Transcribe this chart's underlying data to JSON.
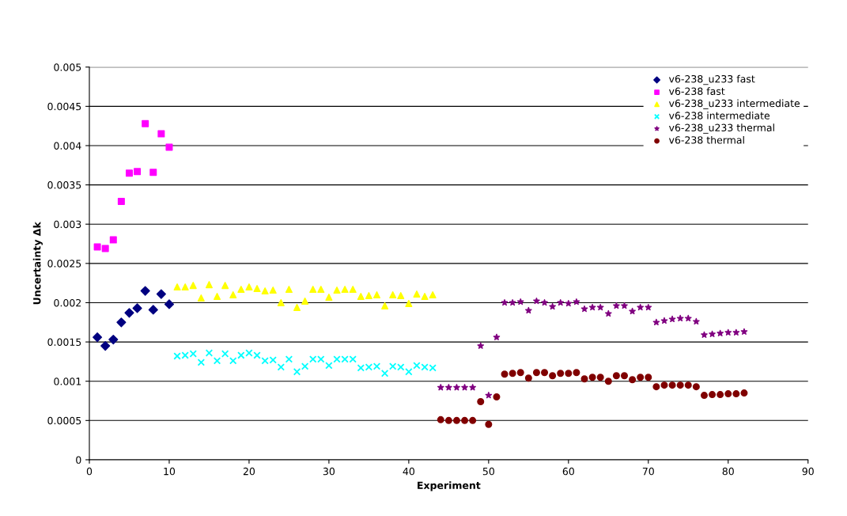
{
  "chart_data": {
    "type": "scatter",
    "xlabel": "Experiment",
    "ylabel": "Uncertainty Δk",
    "xlim": [
      0,
      90
    ],
    "xticks": [
      0,
      10,
      20,
      30,
      40,
      50,
      60,
      70,
      80,
      90
    ],
    "ylim": [
      0,
      0.005
    ],
    "yticks": [
      {
        "value": 0,
        "label": "0"
      },
      {
        "value": 0.0005,
        "label": "0.0005"
      },
      {
        "value": 0.001,
        "label": "0.001"
      },
      {
        "value": 0.0015,
        "label": "0.0015"
      },
      {
        "value": 0.002,
        "label": "0.002"
      },
      {
        "value": 0.0025,
        "label": "0.0025"
      },
      {
        "value": 0.003,
        "label": "0.003"
      },
      {
        "value": 0.0035,
        "label": "0.0035"
      },
      {
        "value": 0.004,
        "label": "0.004"
      },
      {
        "value": 0.0045,
        "label": "0.0045"
      },
      {
        "value": 0.005,
        "label": "0.005"
      }
    ],
    "grid": "y",
    "legend": "top right",
    "series": [
      {
        "name": "v6-238_u233 fast",
        "color": "#000080",
        "marker": "diamond",
        "x": [
          1,
          2,
          3,
          4,
          5,
          6,
          7,
          8,
          9,
          10
        ],
        "values": [
          0.00156,
          0.00145,
          0.00153,
          0.00175,
          0.00187,
          0.00193,
          0.00215,
          0.00191,
          0.00211,
          0.00198
        ]
      },
      {
        "name": "v6-238 fast",
        "color": "#ff00ff",
        "marker": "square",
        "x": [
          1,
          2,
          3,
          4,
          5,
          6,
          7,
          8,
          9,
          10
        ],
        "values": [
          0.00271,
          0.00269,
          0.0028,
          0.00329,
          0.00365,
          0.00367,
          0.00428,
          0.00366,
          0.00415,
          0.00398
        ]
      },
      {
        "name": "v6-238_u233 intermediate",
        "color": "#ffff00",
        "marker": "triangle",
        "x": [
          11,
          12,
          13,
          14,
          15,
          16,
          17,
          18,
          19,
          20,
          21,
          22,
          23,
          24,
          25,
          26,
          27,
          28,
          29,
          30,
          31,
          32,
          33,
          34,
          35,
          36,
          37,
          38,
          39,
          40,
          41,
          42,
          43
        ],
        "values": [
          0.0022,
          0.0022,
          0.00222,
          0.00206,
          0.00223,
          0.00208,
          0.00222,
          0.0021,
          0.00217,
          0.0022,
          0.00218,
          0.00215,
          0.00216,
          0.002,
          0.00217,
          0.00194,
          0.00202,
          0.00217,
          0.00217,
          0.00207,
          0.00216,
          0.00217,
          0.00217,
          0.00208,
          0.00209,
          0.0021,
          0.00196,
          0.0021,
          0.00209,
          0.00199,
          0.00211,
          0.00208,
          0.0021
        ]
      },
      {
        "name": "v6-238 intermediate",
        "color": "#00ffff",
        "marker": "cross",
        "x": [
          11,
          12,
          13,
          14,
          15,
          16,
          17,
          18,
          19,
          20,
          21,
          22,
          23,
          24,
          25,
          26,
          27,
          28,
          29,
          30,
          31,
          32,
          33,
          34,
          35,
          36,
          37,
          38,
          39,
          40,
          41,
          42,
          43
        ],
        "values": [
          0.00132,
          0.00133,
          0.00135,
          0.00124,
          0.00136,
          0.00126,
          0.00135,
          0.00126,
          0.00133,
          0.00136,
          0.00133,
          0.00126,
          0.00127,
          0.00118,
          0.00128,
          0.00112,
          0.00119,
          0.00128,
          0.00128,
          0.0012,
          0.00128,
          0.00128,
          0.00128,
          0.00117,
          0.00118,
          0.00119,
          0.0011,
          0.00119,
          0.00118,
          0.00112,
          0.0012,
          0.00118,
          0.00117
        ]
      },
      {
        "name": "v6-238_u233 thermal",
        "color": "#800080",
        "marker": "star",
        "x": [
          44,
          45,
          46,
          47,
          48,
          49,
          50,
          51,
          52,
          53,
          54,
          55,
          56,
          57,
          58,
          59,
          60,
          61,
          62,
          63,
          64,
          65,
          66,
          67,
          68,
          69,
          70,
          71,
          72,
          73,
          74,
          75,
          76,
          77,
          78,
          79,
          80,
          81,
          82
        ],
        "values": [
          0.00092,
          0.00092,
          0.00092,
          0.00092,
          0.00092,
          0.00145,
          0.00082,
          0.00156,
          0.002,
          0.002,
          0.00201,
          0.0019,
          0.00202,
          0.002,
          0.00195,
          0.002,
          0.00199,
          0.00201,
          0.00192,
          0.00194,
          0.00194,
          0.00186,
          0.00196,
          0.00196,
          0.00189,
          0.00194,
          0.00194,
          0.00175,
          0.00177,
          0.00179,
          0.0018,
          0.0018,
          0.00176,
          0.00159,
          0.0016,
          0.00161,
          0.00162,
          0.00162,
          0.00163
        ]
      },
      {
        "name": "v6-238 thermal",
        "color": "#800000",
        "marker": "circle",
        "x": [
          44,
          45,
          46,
          47,
          48,
          49,
          50,
          51,
          52,
          53,
          54,
          55,
          56,
          57,
          58,
          59,
          60,
          61,
          62,
          63,
          64,
          65,
          66,
          67,
          68,
          69,
          70,
          71,
          72,
          73,
          74,
          75,
          76,
          77,
          78,
          79,
          80,
          81,
          82
        ],
        "values": [
          0.00051,
          0.0005,
          0.0005,
          0.0005,
          0.0005,
          0.00074,
          0.00045,
          0.0008,
          0.00109,
          0.0011,
          0.00111,
          0.00104,
          0.00111,
          0.00111,
          0.00107,
          0.0011,
          0.0011,
          0.00111,
          0.00103,
          0.00105,
          0.00105,
          0.001,
          0.00107,
          0.00107,
          0.00102,
          0.00105,
          0.00105,
          0.00093,
          0.00095,
          0.00095,
          0.00095,
          0.00095,
          0.00093,
          0.00082,
          0.00083,
          0.00083,
          0.00084,
          0.00084,
          0.00085
        ]
      }
    ]
  }
}
